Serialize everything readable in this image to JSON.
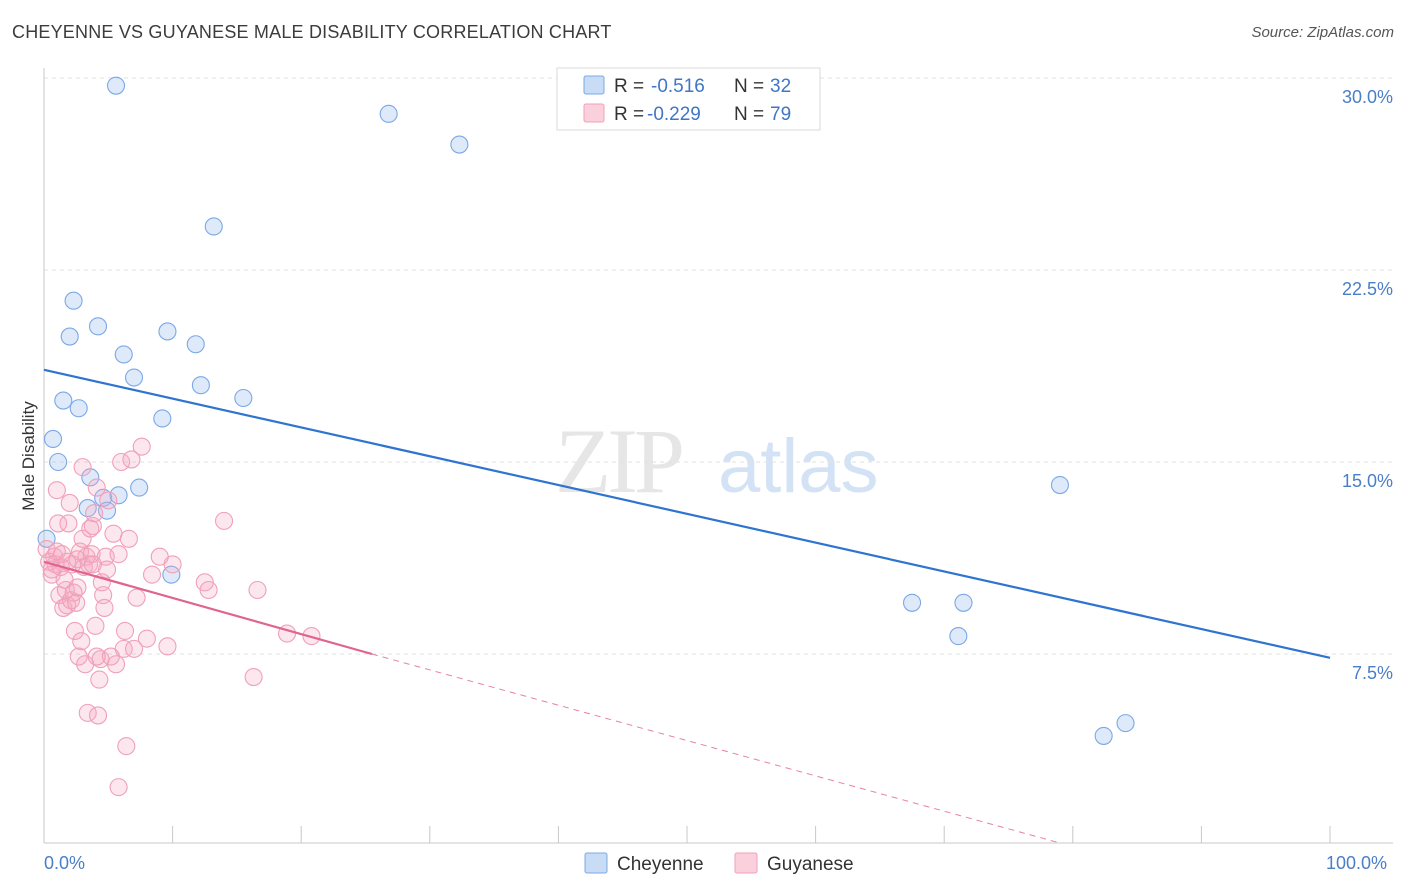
{
  "title": "CHEYENNE VS GUYANESE MALE DISABILITY CORRELATION CHART",
  "source": "Source: ZipAtlas.com",
  "watermark": {
    "zip": "ZIP",
    "atlas": "atlas"
  },
  "chart_data": {
    "type": "scatter",
    "title": "CHEYENNE VS GUYANESE MALE DISABILITY CORRELATION CHART",
    "xlabel": "",
    "ylabel": "Male Disability",
    "xlim": [
      0,
      100
    ],
    "ylim": [
      0,
      30.5
    ],
    "x_tick_labels": [
      "0.0%",
      "100.0%"
    ],
    "y_ticks": [
      7.5,
      15.0,
      22.5,
      30.0
    ],
    "y_tick_labels": [
      "7.5%",
      "15.0%",
      "22.5%",
      "30.0%"
    ],
    "grid": true,
    "legend_position": "top-center",
    "series": [
      {
        "name": "Cheyenne",
        "color": "#6fa3e8",
        "line_color": "#2e74d0",
        "R": "-0.516",
        "N": "32",
        "trend": {
          "x0": 0,
          "y0": 18.6,
          "x1": 100,
          "y1": 7.35,
          "dashed_from": null
        },
        "points": [
          [
            5.6,
            29.7
          ],
          [
            26.8,
            28.6
          ],
          [
            32.3,
            27.4
          ],
          [
            13.2,
            24.2
          ],
          [
            2.3,
            21.3
          ],
          [
            2.0,
            19.9
          ],
          [
            4.2,
            20.3
          ],
          [
            9.6,
            20.1
          ],
          [
            11.8,
            19.6
          ],
          [
            6.2,
            19.2
          ],
          [
            7.0,
            18.3
          ],
          [
            12.2,
            18.0
          ],
          [
            15.5,
            17.5
          ],
          [
            1.5,
            17.4
          ],
          [
            2.7,
            17.1
          ],
          [
            9.2,
            16.7
          ],
          [
            0.7,
            15.9
          ],
          [
            1.1,
            15.0
          ],
          [
            3.6,
            14.4
          ],
          [
            7.4,
            14.0
          ],
          [
            4.6,
            13.6
          ],
          [
            5.8,
            13.7
          ],
          [
            3.4,
            13.2
          ],
          [
            4.9,
            13.1
          ],
          [
            0.2,
            12.0
          ],
          [
            9.9,
            10.6
          ],
          [
            79.0,
            14.1
          ],
          [
            67.5,
            9.5
          ],
          [
            71.5,
            9.5
          ],
          [
            71.1,
            8.2
          ],
          [
            82.4,
            4.3
          ],
          [
            84.1,
            4.8
          ]
        ]
      },
      {
        "name": "Guyanese",
        "color": "#f2a5bc",
        "line_color": "#e0648f",
        "R": "-0.229",
        "N": "79",
        "trend": {
          "x0": 0,
          "y0": 11.1,
          "x1": 25.5,
          "y1": 7.5,
          "dash_to_x": 79,
          "dash_to_y": 0
        },
        "points": [
          [
            0.2,
            11.6
          ],
          [
            0.4,
            11.1
          ],
          [
            0.6,
            10.6
          ],
          [
            0.8,
            11.3
          ],
          [
            0.9,
            11.0
          ],
          [
            1.0,
            11.5
          ],
          [
            1.1,
            12.6
          ],
          [
            1.2,
            9.8
          ],
          [
            1.3,
            10.9
          ],
          [
            1.4,
            11.4
          ],
          [
            1.5,
            9.3
          ],
          [
            1.6,
            10.4
          ],
          [
            1.7,
            10.0
          ],
          [
            1.8,
            9.4
          ],
          [
            1.9,
            12.6
          ],
          [
            2.0,
            13.4
          ],
          [
            2.1,
            9.6
          ],
          [
            2.2,
            11.0
          ],
          [
            2.3,
            9.9
          ],
          [
            2.4,
            8.4
          ],
          [
            2.5,
            9.5
          ],
          [
            2.6,
            10.1
          ],
          [
            2.7,
            7.4
          ],
          [
            2.8,
            11.5
          ],
          [
            2.9,
            8.0
          ],
          [
            3.0,
            12.0
          ],
          [
            3.1,
            10.9
          ],
          [
            3.2,
            7.1
          ],
          [
            3.3,
            11.3
          ],
          [
            3.4,
            5.2
          ],
          [
            3.5,
            11.0
          ],
          [
            3.6,
            12.4
          ],
          [
            3.7,
            11.4
          ],
          [
            3.8,
            12.5
          ],
          [
            3.9,
            13.0
          ],
          [
            4.0,
            8.6
          ],
          [
            4.1,
            14.0
          ],
          [
            4.2,
            5.1
          ],
          [
            4.3,
            6.5
          ],
          [
            4.4,
            7.3
          ],
          [
            4.5,
            10.3
          ],
          [
            4.6,
            9.8
          ],
          [
            4.7,
            9.3
          ],
          [
            4.8,
            11.3
          ],
          [
            4.9,
            10.8
          ],
          [
            5.0,
            13.5
          ],
          [
            5.2,
            7.4
          ],
          [
            5.4,
            12.2
          ],
          [
            5.6,
            7.1
          ],
          [
            5.8,
            11.4
          ],
          [
            6.0,
            15.0
          ],
          [
            6.2,
            7.7
          ],
          [
            6.4,
            3.9
          ],
          [
            6.6,
            12.0
          ],
          [
            6.8,
            15.1
          ],
          [
            7.0,
            7.7
          ],
          [
            7.2,
            9.7
          ],
          [
            7.6,
            15.6
          ],
          [
            8.0,
            8.1
          ],
          [
            8.4,
            10.6
          ],
          [
            9.0,
            11.3
          ],
          [
            9.6,
            7.8
          ],
          [
            10.0,
            11.0
          ],
          [
            12.5,
            10.3
          ],
          [
            12.8,
            10.0
          ],
          [
            14.0,
            12.7
          ],
          [
            16.3,
            6.6
          ],
          [
            16.6,
            10.0
          ],
          [
            18.9,
            8.3
          ],
          [
            20.8,
            8.2
          ],
          [
            1.0,
            13.9
          ],
          [
            3.0,
            14.8
          ],
          [
            5.8,
            2.3
          ],
          [
            0.6,
            10.8
          ],
          [
            1.8,
            11.1
          ],
          [
            2.6,
            11.2
          ],
          [
            4.1,
            7.4
          ],
          [
            6.3,
            8.4
          ],
          [
            3.8,
            11.0
          ]
        ]
      }
    ]
  }
}
